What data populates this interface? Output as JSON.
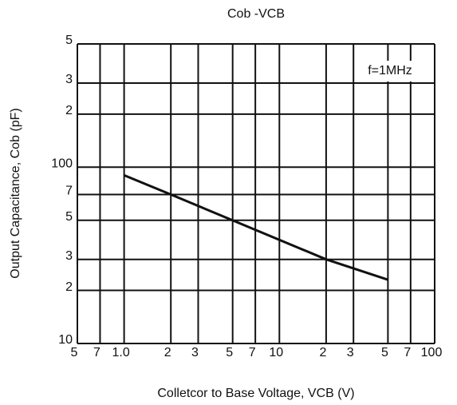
{
  "chart_data": {
    "type": "line",
    "title": "Cob -VCB",
    "x_label": "Colletcor to Base Voltage, VCB (V)",
    "y_label": "Output Capacitance, Cob (pF)",
    "annotation": "f=1MHz",
    "x_log": true,
    "y_log": true,
    "grid": true,
    "x": [
      1,
      2,
      20,
      50
    ],
    "series": [
      {
        "name": "Cob",
        "color": "#111111",
        "values": [
          90,
          70,
          30,
          23
        ]
      }
    ],
    "xlim": [
      0.5,
      100
    ],
    "ylim": [
      10,
      500
    ],
    "xticks": [
      {
        "value": 0.5,
        "label": "5"
      },
      {
        "value": 0.7,
        "label": "7"
      },
      {
        "value": 1,
        "label": "1.0"
      },
      {
        "value": 2,
        "label": "2"
      },
      {
        "value": 3,
        "label": "3"
      },
      {
        "value": 5,
        "label": "5"
      },
      {
        "value": 7,
        "label": "7"
      },
      10,
      {
        "value": 20,
        "label": "2"
      },
      {
        "value": 30,
        "label": "3"
      },
      {
        "value": 50,
        "label": "5"
      },
      {
        "value": 70,
        "label": "7"
      },
      100
    ],
    "yticks": [
      10,
      {
        "value": 20,
        "label": "2"
      },
      {
        "value": 30,
        "label": "3"
      },
      {
        "value": 50,
        "label": "5"
      },
      {
        "value": 70,
        "label": "7"
      },
      100,
      {
        "value": 200,
        "label": "2"
      },
      {
        "value": 300,
        "label": "3"
      },
      {
        "value": 500,
        "label": "5"
      }
    ]
  }
}
